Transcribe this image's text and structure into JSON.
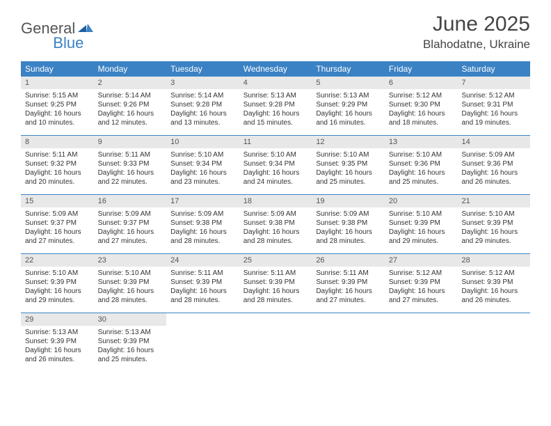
{
  "brand": {
    "general": "General",
    "blue": "Blue"
  },
  "title": "June 2025",
  "location": "Blahodatne, Ukraine",
  "colors": {
    "header_bg": "#3b82c4",
    "header_text": "#ffffff",
    "daynum_bg": "#e8e8e8",
    "line": "#3b82c4",
    "text": "#333333"
  },
  "day_headers": [
    "Sunday",
    "Monday",
    "Tuesday",
    "Wednesday",
    "Thursday",
    "Friday",
    "Saturday"
  ],
  "weeks": [
    [
      {
        "n": "1",
        "sr": "5:15 AM",
        "ss": "9:25 PM",
        "dl1": "16 hours",
        "dl2": "and 10 minutes."
      },
      {
        "n": "2",
        "sr": "5:14 AM",
        "ss": "9:26 PM",
        "dl1": "16 hours",
        "dl2": "and 12 minutes."
      },
      {
        "n": "3",
        "sr": "5:14 AM",
        "ss": "9:28 PM",
        "dl1": "16 hours",
        "dl2": "and 13 minutes."
      },
      {
        "n": "4",
        "sr": "5:13 AM",
        "ss": "9:28 PM",
        "dl1": "16 hours",
        "dl2": "and 15 minutes."
      },
      {
        "n": "5",
        "sr": "5:13 AM",
        "ss": "9:29 PM",
        "dl1": "16 hours",
        "dl2": "and 16 minutes."
      },
      {
        "n": "6",
        "sr": "5:12 AM",
        "ss": "9:30 PM",
        "dl1": "16 hours",
        "dl2": "and 18 minutes."
      },
      {
        "n": "7",
        "sr": "5:12 AM",
        "ss": "9:31 PM",
        "dl1": "16 hours",
        "dl2": "and 19 minutes."
      }
    ],
    [
      {
        "n": "8",
        "sr": "5:11 AM",
        "ss": "9:32 PM",
        "dl1": "16 hours",
        "dl2": "and 20 minutes."
      },
      {
        "n": "9",
        "sr": "5:11 AM",
        "ss": "9:33 PM",
        "dl1": "16 hours",
        "dl2": "and 22 minutes."
      },
      {
        "n": "10",
        "sr": "5:10 AM",
        "ss": "9:34 PM",
        "dl1": "16 hours",
        "dl2": "and 23 minutes."
      },
      {
        "n": "11",
        "sr": "5:10 AM",
        "ss": "9:34 PM",
        "dl1": "16 hours",
        "dl2": "and 24 minutes."
      },
      {
        "n": "12",
        "sr": "5:10 AM",
        "ss": "9:35 PM",
        "dl1": "16 hours",
        "dl2": "and 25 minutes."
      },
      {
        "n": "13",
        "sr": "5:10 AM",
        "ss": "9:36 PM",
        "dl1": "16 hours",
        "dl2": "and 25 minutes."
      },
      {
        "n": "14",
        "sr": "5:09 AM",
        "ss": "9:36 PM",
        "dl1": "16 hours",
        "dl2": "and 26 minutes."
      }
    ],
    [
      {
        "n": "15",
        "sr": "5:09 AM",
        "ss": "9:37 PM",
        "dl1": "16 hours",
        "dl2": "and 27 minutes."
      },
      {
        "n": "16",
        "sr": "5:09 AM",
        "ss": "9:37 PM",
        "dl1": "16 hours",
        "dl2": "and 27 minutes."
      },
      {
        "n": "17",
        "sr": "5:09 AM",
        "ss": "9:38 PM",
        "dl1": "16 hours",
        "dl2": "and 28 minutes."
      },
      {
        "n": "18",
        "sr": "5:09 AM",
        "ss": "9:38 PM",
        "dl1": "16 hours",
        "dl2": "and 28 minutes."
      },
      {
        "n": "19",
        "sr": "5:09 AM",
        "ss": "9:38 PM",
        "dl1": "16 hours",
        "dl2": "and 28 minutes."
      },
      {
        "n": "20",
        "sr": "5:10 AM",
        "ss": "9:39 PM",
        "dl1": "16 hours",
        "dl2": "and 29 minutes."
      },
      {
        "n": "21",
        "sr": "5:10 AM",
        "ss": "9:39 PM",
        "dl1": "16 hours",
        "dl2": "and 29 minutes."
      }
    ],
    [
      {
        "n": "22",
        "sr": "5:10 AM",
        "ss": "9:39 PM",
        "dl1": "16 hours",
        "dl2": "and 29 minutes."
      },
      {
        "n": "23",
        "sr": "5:10 AM",
        "ss": "9:39 PM",
        "dl1": "16 hours",
        "dl2": "and 28 minutes."
      },
      {
        "n": "24",
        "sr": "5:11 AM",
        "ss": "9:39 PM",
        "dl1": "16 hours",
        "dl2": "and 28 minutes."
      },
      {
        "n": "25",
        "sr": "5:11 AM",
        "ss": "9:39 PM",
        "dl1": "16 hours",
        "dl2": "and 28 minutes."
      },
      {
        "n": "26",
        "sr": "5:11 AM",
        "ss": "9:39 PM",
        "dl1": "16 hours",
        "dl2": "and 27 minutes."
      },
      {
        "n": "27",
        "sr": "5:12 AM",
        "ss": "9:39 PM",
        "dl1": "16 hours",
        "dl2": "and 27 minutes."
      },
      {
        "n": "28",
        "sr": "5:12 AM",
        "ss": "9:39 PM",
        "dl1": "16 hours",
        "dl2": "and 26 minutes."
      }
    ],
    [
      {
        "n": "29",
        "sr": "5:13 AM",
        "ss": "9:39 PM",
        "dl1": "16 hours",
        "dl2": "and 26 minutes."
      },
      {
        "n": "30",
        "sr": "5:13 AM",
        "ss": "9:39 PM",
        "dl1": "16 hours",
        "dl2": "and 25 minutes."
      },
      null,
      null,
      null,
      null,
      null
    ]
  ],
  "labels": {
    "sunrise_prefix": "Sunrise: ",
    "sunset_prefix": "Sunset: ",
    "daylight_prefix": "Daylight: "
  }
}
